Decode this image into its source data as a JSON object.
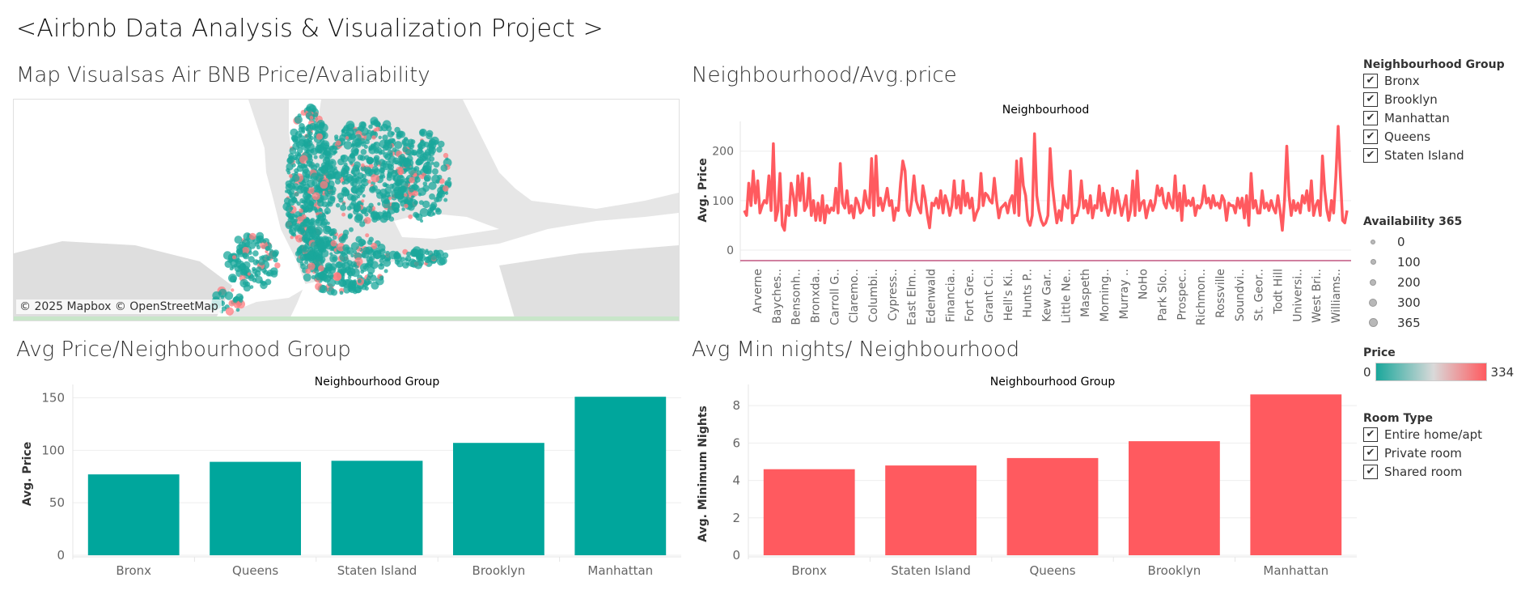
{
  "dashboard": {
    "title": "<Airbnb Data Analysis & Visualization Project >"
  },
  "map_sheet": {
    "title": "Map Visualsas Air BNB Price/Avaliability",
    "credit": "© 2025 Mapbox © OpenStreetMap",
    "colors": {
      "water": "#ffffff",
      "land": "#e6e6e6",
      "low_price": "#1aa79b",
      "high_price": "#ff7b7f"
    }
  },
  "legends": {
    "group": {
      "title": "Neighbourhood Group",
      "items": [
        "Bronx",
        "Brooklyn",
        "Manhattan",
        "Queens",
        "Staten Island"
      ]
    },
    "availability": {
      "title": "Availability 365",
      "items": [
        "0",
        "100",
        "200",
        "300",
        "365"
      ]
    },
    "price": {
      "title": "Price",
      "min": "0",
      "max": "334"
    },
    "room": {
      "title": "Room Type",
      "items": [
        "Entire home/apt",
        "Private room",
        "Shared room"
      ]
    },
    "check_glyph": "✔"
  },
  "line_sheet": {
    "title": "Neighbourhood/Avg.price",
    "chart_data": {
      "type": "line",
      "title": "Neighbourhood",
      "ylabel": "Avg. Price",
      "yticks": [
        "0",
        "100",
        "200"
      ],
      "ylim": [
        -18,
        260
      ],
      "color": "#ff5a5f",
      "x_labels": [
        "Arverne",
        "Bayches..",
        "Bensonh..",
        "Bronxda..",
        "Carroll G..",
        "Claremo..",
        "Columbi..",
        "Cypress..",
        "East Elm..",
        "Edenwald",
        "Financia..",
        "Fort Gre..",
        "Grant Ci..",
        "Hell's Ki..",
        "Hunts P..",
        "Kew Gar..",
        "Little Ne..",
        "Maspeth",
        "Morning..",
        "Murray ..",
        "NoHo",
        "Park Slo..",
        "Prospec..",
        "Richmon..",
        "Rossville",
        "Soundvi..",
        "St. Geor..",
        "Todt Hill",
        "Universi..",
        "West Bri..",
        "Williams.."
      ],
      "values": [
        80,
        70,
        135,
        90,
        160,
        95,
        140,
        75,
        90,
        100,
        95,
        150,
        80,
        215,
        60,
        80,
        155,
        50,
        40,
        90,
        70,
        135,
        110,
        70,
        150,
        100,
        155,
        80,
        90,
        145,
        70,
        100,
        60,
        95,
        60,
        110,
        55,
        90,
        75,
        85,
        80,
        125,
        75,
        175,
        95,
        85,
        120,
        75,
        90,
        65,
        105,
        95,
        75,
        80,
        120,
        95,
        85,
        185,
        70,
        190,
        90,
        105,
        80,
        100,
        125,
        90,
        100,
        60,
        85,
        80,
        135,
        180,
        160,
        80,
        70,
        100,
        150,
        100,
        85,
        75,
        130,
        105,
        70,
        45,
        95,
        90,
        105,
        85,
        120,
        75,
        110,
        95,
        70,
        90,
        140,
        85,
        110,
        75,
        140,
        90,
        115,
        85,
        105,
        60,
        75,
        85,
        155,
        90,
        115,
        110,
        100,
        95,
        145,
        100,
        65,
        85,
        90,
        95,
        75,
        100,
        110,
        75,
        180,
        70,
        185,
        130,
        110,
        60,
        50,
        70,
        235,
        110,
        80,
        60,
        50,
        55,
        70,
        205,
        130,
        90,
        55,
        80,
        60,
        110,
        90,
        85,
        160,
        55,
        70,
        70,
        90,
        140,
        85,
        100,
        75,
        110,
        65,
        90,
        85,
        130,
        80,
        115,
        90,
        70,
        85,
        125,
        75,
        120,
        95,
        70,
        90,
        110,
        60,
        80,
        140,
        70,
        160,
        80,
        95,
        100,
        65,
        85,
        100,
        80,
        95,
        130,
        110,
        125,
        95,
        85,
        115,
        95,
        85,
        150,
        80,
        115,
        60,
        130,
        90,
        100,
        90,
        105,
        70,
        90,
        85,
        95,
        130,
        95,
        105,
        85,
        110,
        90,
        95,
        85,
        110,
        100,
        60,
        95,
        90,
        90,
        75,
        105,
        85,
        105,
        65,
        110,
        50,
        155,
        85,
        100,
        75,
        75,
        120,
        85,
        95,
        80,
        100,
        85,
        75,
        110,
        80,
        40,
        100,
        210,
        110,
        70,
        100,
        80,
        95,
        75,
        110,
        95,
        120,
        80,
        140,
        70,
        90,
        100,
        70,
        190,
        120,
        80,
        60,
        100,
        75,
        150,
        250,
        150,
        60,
        55,
        80
      ]
    }
  },
  "avg_price_sheet": {
    "title": "Avg Price/Neighbourhood Group",
    "chart_data": {
      "type": "bar",
      "title": "Neighbourhood Group",
      "ylabel": "Avg. Price",
      "categories": [
        "Bronx",
        "Queens",
        "Staten Island",
        "Brooklyn",
        "Manhattan"
      ],
      "values": [
        77,
        89,
        90,
        107,
        151
      ],
      "yticks": [
        "0",
        "50",
        "100",
        "150"
      ],
      "ylim": [
        0,
        155
      ],
      "color": "#00a69c"
    }
  },
  "min_nights_sheet": {
    "title": "Avg Min nights/ Neighbourhood",
    "chart_data": {
      "type": "bar",
      "title": "Neighbourhood Group",
      "ylabel": "Avg. Minimum Nights",
      "categories": [
        "Bronx",
        "Staten Island",
        "Queens",
        "Brooklyn",
        "Manhattan"
      ],
      "values": [
        4.6,
        4.8,
        5.2,
        6.1,
        8.6
      ],
      "yticks": [
        "0",
        "2",
        "4",
        "6",
        "8"
      ],
      "ylim": [
        0,
        8.7
      ],
      "color": "#ff5a5f"
    }
  }
}
